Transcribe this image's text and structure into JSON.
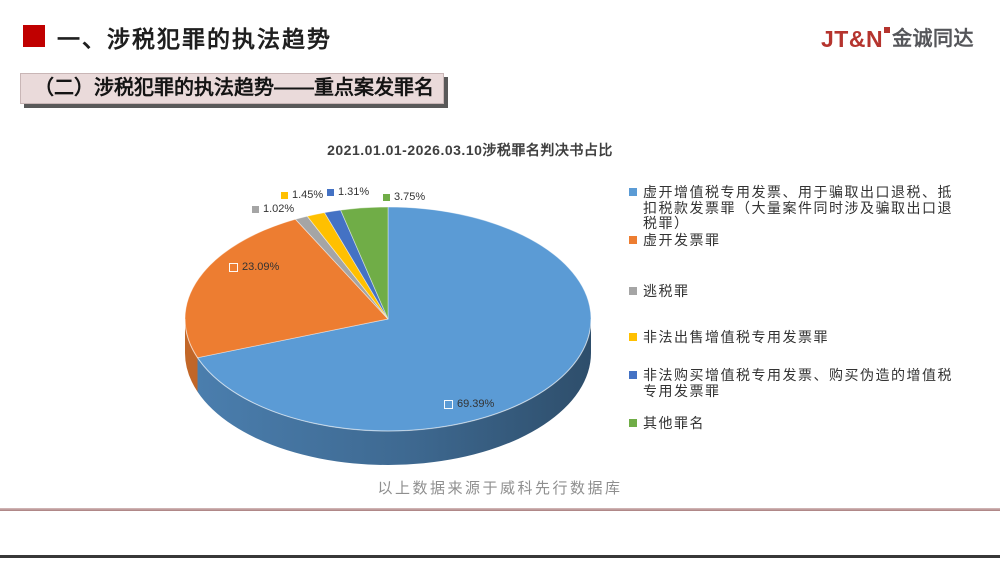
{
  "header": {
    "title": "一、涉税犯罪的执法趋势",
    "logo": {
      "wordmark": "JT&N",
      "cjk": "金诚同达"
    }
  },
  "subtitle_banner": "（二）涉税犯罪的执法趋势——重点案发罪名",
  "source_note": "以上数据来源于威科先行数据库",
  "chart_data": {
    "type": "pie",
    "style": "3d-pie",
    "title": "2021.01.01-2026.03.10涉税罪名判决书占比",
    "start_angle_deg": -90,
    "direction": "clockwise",
    "legend_position": "right",
    "slices": [
      {
        "label": "虚开增值税专用发票、用于骗取出口退税、抵\n扣税款发票罪（大量案件同时涉及骗取出口退\n税罪）",
        "value": 69.39,
        "display_pct": "69.39%",
        "color": "#5B9BD5"
      },
      {
        "label": "虚开发票罪",
        "value": 23.09,
        "display_pct": "23.09%",
        "color": "#ED7D31"
      },
      {
        "label": "逃税罪",
        "value": 1.02,
        "display_pct": "1.02%",
        "color": "#A5A5A5"
      },
      {
        "label": "非法出售增值税专用发票罪",
        "value": 1.45,
        "display_pct": "1.45%",
        "color": "#FFC000"
      },
      {
        "label": "非法购买增值税专用发票、购买伪造的增值税\n专用发票罪",
        "value": 1.31,
        "display_pct": "1.31%",
        "color": "#4472C4"
      },
      {
        "label": "其他罪名",
        "value": 3.75,
        "display_pct": "3.75%",
        "color": "#70AD47"
      }
    ]
  }
}
